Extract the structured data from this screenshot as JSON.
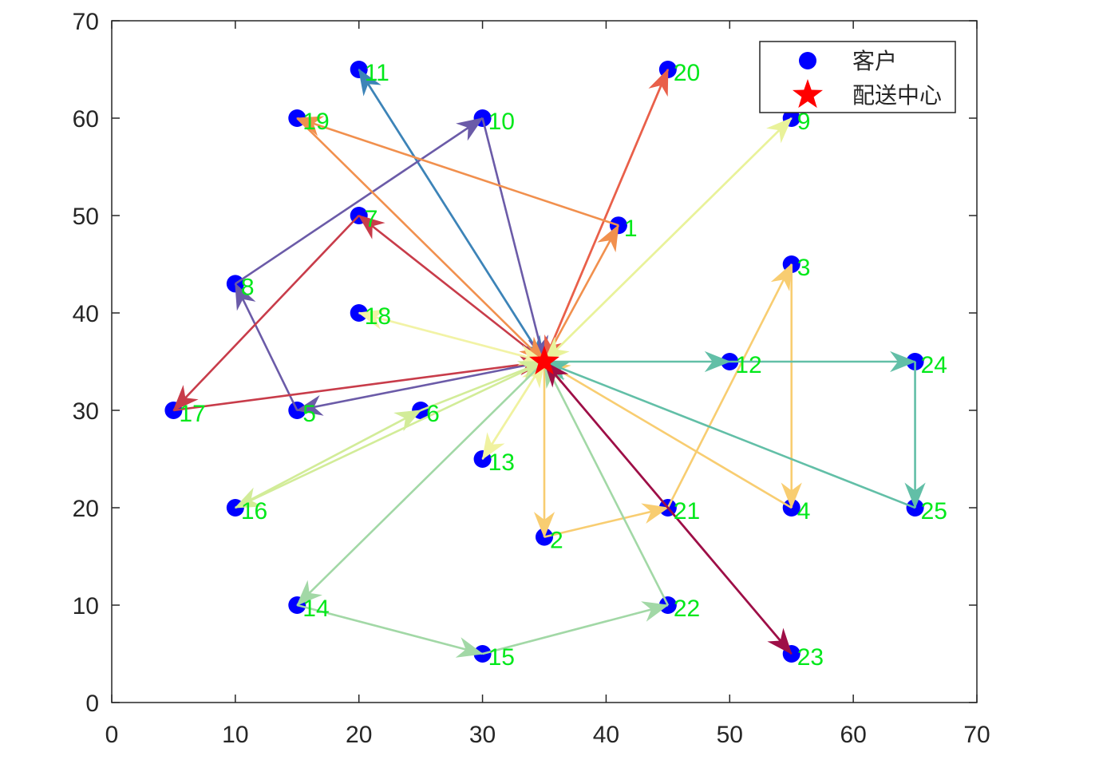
{
  "chart_data": {
    "type": "scatter",
    "xlim": [
      0,
      70
    ],
    "ylim": [
      0,
      70
    ],
    "x_ticks": [
      0,
      10,
      20,
      30,
      40,
      50,
      60,
      70
    ],
    "y_ticks": [
      0,
      10,
      20,
      30,
      40,
      50,
      60,
      70
    ],
    "grid": false,
    "legend_position": "top-right",
    "legend": [
      {
        "label": "客户",
        "marker": "circle",
        "color": "#0000ff"
      },
      {
        "label": "配送中心",
        "marker": "star",
        "color": "#ff0000"
      }
    ],
    "depot": {
      "x": 35,
      "y": 35
    },
    "customers": [
      {
        "id": "1",
        "x": 41,
        "y": 49
      },
      {
        "id": "2",
        "x": 35,
        "y": 17
      },
      {
        "id": "3",
        "x": 55,
        "y": 45
      },
      {
        "id": "4",
        "x": 55,
        "y": 20
      },
      {
        "id": "5",
        "x": 15,
        "y": 30
      },
      {
        "id": "6",
        "x": 25,
        "y": 30
      },
      {
        "id": "7",
        "x": 20,
        "y": 50
      },
      {
        "id": "8",
        "x": 10,
        "y": 43
      },
      {
        "id": "9",
        "x": 55,
        "y": 60
      },
      {
        "id": "10",
        "x": 30,
        "y": 60
      },
      {
        "id": "11",
        "x": 20,
        "y": 65
      },
      {
        "id": "12",
        "x": 50,
        "y": 35
      },
      {
        "id": "13",
        "x": 30,
        "y": 25
      },
      {
        "id": "14",
        "x": 15,
        "y": 10
      },
      {
        "id": "15",
        "x": 30,
        "y": 5
      },
      {
        "id": "16",
        "x": 10,
        "y": 20
      },
      {
        "id": "17",
        "x": 5,
        "y": 30
      },
      {
        "id": "18",
        "x": 20,
        "y": 40
      },
      {
        "id": "19",
        "x": 15,
        "y": 60
      },
      {
        "id": "20",
        "x": 45,
        "y": 65
      },
      {
        "id": "21",
        "x": 45,
        "y": 20
      },
      {
        "id": "22",
        "x": 45,
        "y": 10
      },
      {
        "id": "23",
        "x": 55,
        "y": 5
      },
      {
        "id": "24",
        "x": 65,
        "y": 35
      },
      {
        "id": "25",
        "x": 65,
        "y": 20
      }
    ],
    "routes": [
      {
        "color": "#3d84b8",
        "stops": [
          "0",
          "11",
          "0"
        ]
      },
      {
        "color": "#6b5ba8",
        "stops": [
          "0",
          "5",
          "8",
          "10",
          "0"
        ]
      },
      {
        "color": "#c83c4a",
        "stops": [
          "0",
          "7",
          "17",
          "0"
        ]
      },
      {
        "color": "#e9604a",
        "stops": [
          "0",
          "20",
          "0"
        ]
      },
      {
        "color": "#f1904e",
        "stops": [
          "0",
          "1",
          "19",
          "0"
        ]
      },
      {
        "color": "#f8cd71",
        "stops": [
          "0",
          "2",
          "21",
          "3",
          "4",
          "0"
        ]
      },
      {
        "color": "#e9f29a",
        "stops": [
          "0",
          "9",
          "0"
        ]
      },
      {
        "color": "#f2f3a6",
        "stops": [
          "0",
          "18",
          "0"
        ]
      },
      {
        "color": "#f0f2a0",
        "stops": [
          "0",
          "13",
          "0"
        ]
      },
      {
        "color": "#d2ec98",
        "stops": [
          "0",
          "16",
          "6",
          "0"
        ]
      },
      {
        "color": "#a2d8a6",
        "stops": [
          "0",
          "14",
          "15",
          "22",
          "0"
        ]
      },
      {
        "color": "#62bfa7",
        "stops": [
          "0",
          "12",
          "24",
          "25",
          "0"
        ]
      },
      {
        "color": "#9e0f47",
        "stops": [
          "0",
          "23",
          "0"
        ]
      }
    ]
  }
}
